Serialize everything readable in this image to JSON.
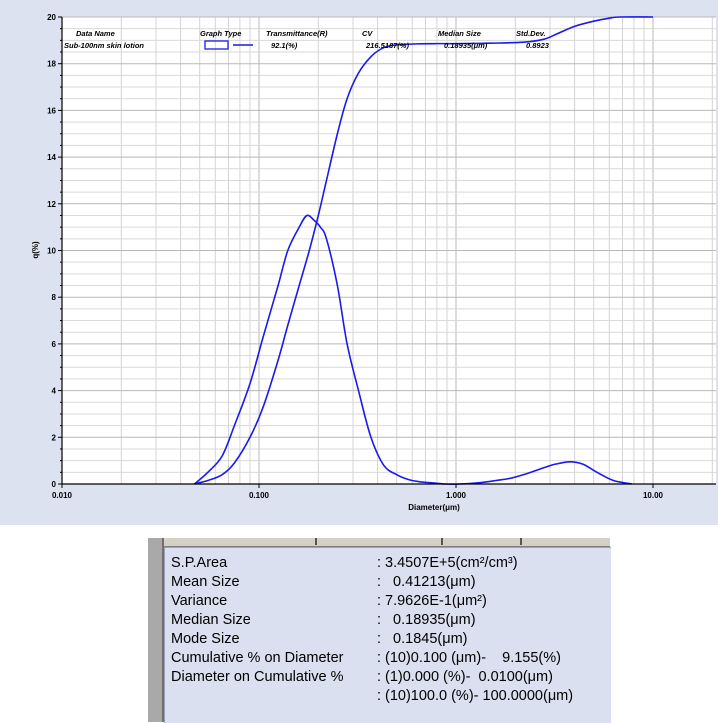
{
  "chart_data": {
    "type": "line",
    "xlabel": "Diameter(μm)",
    "ylabel": "q(%)",
    "x_scale": "log",
    "xlim": [
      0.01,
      30
    ],
    "ylim": [
      0,
      20
    ],
    "x_tick_labels": [
      "0.010",
      "0.100",
      "1.000",
      "10.00"
    ],
    "y_tick_labels": [
      "0",
      "2",
      "4",
      "6",
      "8",
      "10",
      "12",
      "14",
      "16",
      "18",
      "20"
    ],
    "grid": true,
    "legend_headers": [
      "Data Name",
      "Graph Type",
      "Transmittance(R)",
      "CV",
      "Median Size",
      "Std.Dev."
    ],
    "legend_row": {
      "name": "Sub-100nm skin lotion",
      "transmittance": "92.1(%)",
      "cv": "216.5187(%)",
      "median": "0.18935(μm)",
      "stddev": "0.8923"
    },
    "series": [
      {
        "name": "Sub-100nm skin lotion",
        "role": "frequency",
        "color": "#1a1aee",
        "x": [
          0.047,
          0.055,
          0.065,
          0.075,
          0.09,
          0.105,
          0.125,
          0.14,
          0.16,
          0.175,
          0.19,
          0.205,
          0.22,
          0.25,
          0.28,
          0.32,
          0.37,
          0.43,
          0.5,
          0.57,
          0.65,
          0.75,
          0.88,
          1.05,
          1.3,
          1.6,
          1.9,
          2.3,
          2.8,
          3.2,
          3.8,
          4.4,
          5.2,
          6.3,
          7.8
        ],
        "y": [
          0.0,
          0.5,
          1.2,
          2.5,
          4.3,
          6.3,
          8.5,
          10.0,
          11.0,
          11.5,
          11.3,
          11.0,
          10.5,
          8.5,
          6.0,
          4.0,
          2.0,
          0.8,
          0.4,
          0.2,
          0.1,
          0.05,
          0.0,
          0.0,
          0.05,
          0.15,
          0.25,
          0.45,
          0.7,
          0.85,
          0.95,
          0.85,
          0.5,
          0.15,
          0.0
        ]
      },
      {
        "name": "Sub-100nm skin lotion",
        "role": "cumulative",
        "color": "#1a1aee",
        "x": [
          0.047,
          0.055,
          0.065,
          0.075,
          0.09,
          0.105,
          0.125,
          0.14,
          0.16,
          0.18,
          0.2,
          0.22,
          0.25,
          0.28,
          0.32,
          0.37,
          0.42,
          0.47,
          0.55,
          0.65,
          0.8,
          1.0,
          1.5,
          2.2,
          2.8,
          3.3,
          4.0,
          5.0,
          6.0,
          6.8,
          10.0,
          30.0
        ],
        "y": [
          0.0,
          0.15,
          0.4,
          0.9,
          2.0,
          3.3,
          5.3,
          6.8,
          8.5,
          10.0,
          11.5,
          13.0,
          15.0,
          16.5,
          17.6,
          18.3,
          18.65,
          18.78,
          18.83,
          18.85,
          18.86,
          18.86,
          18.88,
          18.92,
          19.05,
          19.3,
          19.6,
          19.82,
          19.95,
          20.0,
          20.0,
          20.0
        ]
      }
    ]
  },
  "statistics": {
    "rows": [
      {
        "label": "S.P.Area",
        "sep": ":",
        "value": "3.4507E+5(cm²/cm³)"
      },
      {
        "label": "Mean Size",
        "sep": ":",
        "value": "  0.41213(μm)"
      },
      {
        "label": "Variance",
        "sep": ":",
        "value": "7.9626E-1(μm²)"
      },
      {
        "label": "Median Size",
        "sep": ":",
        "value": "  0.18935(μm)"
      },
      {
        "label": "Mode Size",
        "sep": ":",
        "value": "  0.1845(μm)"
      },
      {
        "label": "Cumulative % on Diameter",
        "sep": ":",
        "value": "(10)0.100 (μm)-    9.155(%)"
      },
      {
        "label": "Diameter on Cumulative %",
        "sep": ":",
        "value": "(1)0.000 (%)-  0.0100(μm)"
      },
      {
        "label": "",
        "sep": ":",
        "value": "(10)100.0 (%)- 100.0000(μm)"
      }
    ]
  }
}
